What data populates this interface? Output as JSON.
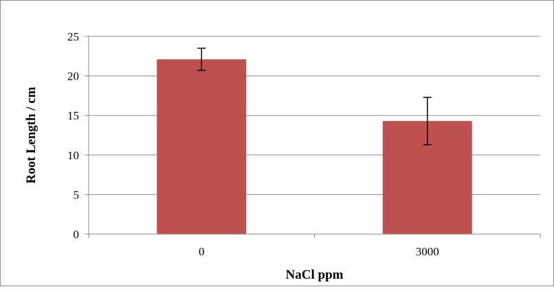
{
  "chart_data": {
    "type": "bar",
    "categories": [
      "0",
      "3000"
    ],
    "values": [
      22.1,
      14.3
    ],
    "error_bars": [
      1.4,
      3.0
    ],
    "xlabel": "NaCl ppm",
    "ylabel": "Root Length / cm",
    "ylim": [
      0,
      25
    ],
    "yticks": [
      "0",
      "5",
      "10",
      "15",
      "20",
      "25"
    ],
    "grid": true,
    "legend": "none",
    "colors": {
      "bar": "#c0504d",
      "grid": "#8c8c8c",
      "axis": "#8c8c8c",
      "error_bar": "#000000"
    }
  }
}
